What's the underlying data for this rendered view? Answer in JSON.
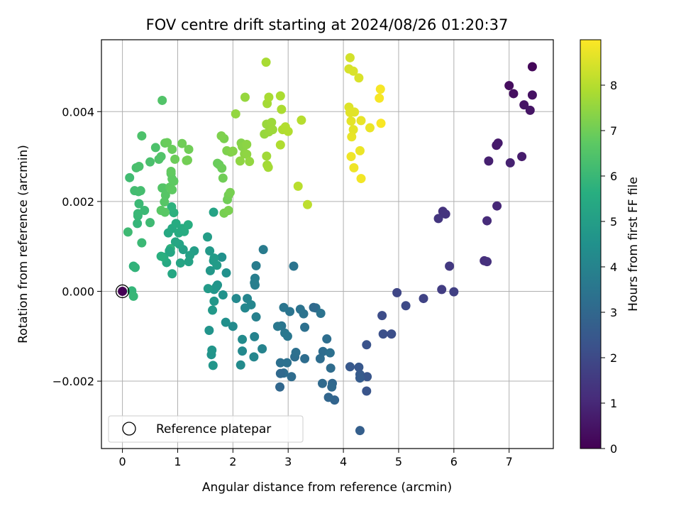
{
  "chart_data": {
    "type": "scatter",
    "title": "FOV centre drift starting at 2024/08/26 01:20:37",
    "xlabel": "Angular distance from reference (arcmin)",
    "ylabel": "Rotation from reference (arcmin)",
    "xlim": [
      -0.38,
      7.8
    ],
    "ylim": [
      -0.0035,
      0.0056
    ],
    "xticks": [
      0,
      1,
      2,
      3,
      4,
      5,
      6,
      7
    ],
    "xtick_labels": [
      "0",
      "1",
      "2",
      "3",
      "4",
      "5",
      "6",
      "7"
    ],
    "yticks": [
      -0.002,
      0.0,
      0.002,
      0.004
    ],
    "ytick_labels": [
      "−0.002",
      "0.000",
      "0.002",
      "0.004"
    ],
    "grid": true,
    "legend": {
      "position": "lower-left",
      "entries": [
        "Reference platepar"
      ]
    },
    "colorbar": {
      "label": "Hours from first FF file",
      "colormap": "viridis",
      "range": [
        0,
        9
      ],
      "ticks": [
        0,
        1,
        2,
        3,
        4,
        5,
        6,
        7,
        8
      ],
      "tick_labels": [
        "0",
        "1",
        "2",
        "3",
        "4",
        "5",
        "6",
        "7",
        "8"
      ]
    },
    "reference_point": {
      "x": 0.0,
      "y": 0.0,
      "marker": "open-circle"
    },
    "points_columns": [
      "x",
      "y",
      "hours"
    ],
    "points": [
      [
        0.0,
        0.0,
        0.0
      ],
      [
        7.42,
        0.005,
        0.15
      ],
      [
        7.0,
        0.00458,
        0.3
      ],
      [
        7.08,
        0.0044,
        0.35
      ],
      [
        7.42,
        0.00437,
        0.4
      ],
      [
        7.27,
        0.00415,
        0.45
      ],
      [
        7.38,
        0.00403,
        0.5
      ],
      [
        6.77,
        0.00325,
        0.6
      ],
      [
        6.8,
        0.0033,
        0.65
      ],
      [
        7.23,
        0.003,
        0.7
      ],
      [
        6.63,
        0.0029,
        0.8
      ],
      [
        7.02,
        0.00286,
        0.85
      ],
      [
        6.78,
        0.0019,
        1.0
      ],
      [
        6.6,
        0.00157,
        1.1
      ],
      [
        5.8,
        0.00178,
        1.3
      ],
      [
        5.85,
        0.00172,
        1.35
      ],
      [
        5.72,
        0.00162,
        1.4
      ],
      [
        6.55,
        0.00068,
        1.2
      ],
      [
        6.6,
        0.00066,
        1.25
      ],
      [
        5.92,
        0.00056,
        1.5
      ],
      [
        5.78,
        4e-05,
        1.6
      ],
      [
        6.0,
        -1e-05,
        1.7
      ],
      [
        4.97,
        -3e-05,
        1.9
      ],
      [
        5.13,
        -0.00032,
        2.0
      ],
      [
        5.45,
        -0.00016,
        1.8
      ],
      [
        4.7,
        -0.00054,
        2.1
      ],
      [
        4.72,
        -0.00095,
        2.2
      ],
      [
        4.87,
        -0.00095,
        2.15
      ],
      [
        4.42,
        -0.00119,
        2.3
      ],
      [
        4.12,
        -0.00168,
        2.5
      ],
      [
        4.28,
        -0.00169,
        2.45
      ],
      [
        4.3,
        -0.00185,
        2.55
      ],
      [
        4.43,
        -0.0019,
        2.4
      ],
      [
        4.3,
        -0.00193,
        2.6
      ],
      [
        4.42,
        -0.00222,
        2.35
      ],
      [
        4.3,
        -0.0031,
        2.7
      ],
      [
        3.84,
        -0.00242,
        2.9
      ],
      [
        3.73,
        -0.00236,
        2.95
      ],
      [
        3.8,
        -0.00205,
        3.0
      ],
      [
        3.79,
        -0.00213,
        3.05
      ],
      [
        3.62,
        -0.00205,
        3.1
      ],
      [
        3.77,
        -0.00171,
        3.15
      ],
      [
        3.63,
        -0.00134,
        3.2
      ],
      [
        3.7,
        -0.00106,
        3.25
      ],
      [
        3.76,
        -0.00137,
        3.3
      ],
      [
        3.58,
        -0.0015,
        3.2
      ],
      [
        3.5,
        -0.00037,
        3.35
      ],
      [
        3.59,
        -0.00049,
        3.4
      ],
      [
        3.46,
        -0.00036,
        3.1
      ],
      [
        3.3,
        -0.0008,
        3.3
      ],
      [
        3.28,
        -0.0005,
        3.4
      ],
      [
        3.3,
        -0.0015,
        3.2
      ],
      [
        3.12,
        -0.00146,
        3.25
      ],
      [
        3.14,
        -0.00136,
        3.3
      ],
      [
        3.06,
        -0.0019,
        3.15
      ],
      [
        2.92,
        -0.00182,
        3.2
      ],
      [
        2.86,
        -0.00159,
        3.3
      ],
      [
        2.98,
        -0.00159,
        3.35
      ],
      [
        2.86,
        -0.00183,
        3.05
      ],
      [
        2.85,
        -0.00213,
        3.0
      ],
      [
        2.92,
        -0.00036,
        3.5
      ],
      [
        3.03,
        -0.00045,
        3.45
      ],
      [
        3.22,
        -0.0004,
        3.4
      ],
      [
        2.99,
        -0.001,
        3.55
      ],
      [
        2.94,
        -0.00093,
        3.6
      ],
      [
        2.88,
        -0.00077,
        3.5
      ],
      [
        2.81,
        -0.00078,
        3.6
      ],
      [
        3.1,
        0.00056,
        3.45
      ],
      [
        2.55,
        0.00093,
        3.7
      ],
      [
        2.42,
        0.00057,
        3.75
      ],
      [
        2.4,
        0.00029,
        3.8
      ],
      [
        2.39,
        0.00019,
        3.85
      ],
      [
        2.4,
        0.00014,
        3.8
      ],
      [
        2.42,
        -0.00057,
        3.9
      ],
      [
        2.39,
        -0.00101,
        4.0
      ],
      [
        2.53,
        -0.00128,
        4.0
      ],
      [
        2.26,
        -0.00016,
        4.05
      ],
      [
        2.33,
        -0.0003,
        4.1
      ],
      [
        2.22,
        -0.00037,
        4.15
      ],
      [
        2.06,
        -0.00016,
        4.2
      ],
      [
        2.0,
        -0.00078,
        4.25
      ],
      [
        2.17,
        -0.00107,
        4.3
      ],
      [
        2.17,
        -0.00133,
        4.2
      ],
      [
        2.38,
        -0.00146,
        4.1
      ],
      [
        2.14,
        -0.00164,
        4.3
      ],
      [
        1.87,
        -0.00069,
        4.45
      ],
      [
        1.88,
        0.00041,
        4.5
      ],
      [
        1.8,
        0.00076,
        4.5
      ],
      [
        1.82,
        -8e-05,
        4.55
      ],
      [
        1.72,
        0.00014,
        4.6
      ],
      [
        1.7,
        0.0001,
        4.65
      ],
      [
        1.66,
        4e-05,
        4.7
      ],
      [
        1.66,
        -0.00022,
        4.75
      ],
      [
        1.63,
        -0.00042,
        4.8
      ],
      [
        1.55,
        6e-05,
        4.85
      ],
      [
        1.58,
        0.0009,
        4.8
      ],
      [
        1.59,
        0.00046,
        4.75
      ],
      [
        1.65,
        0.00068,
        4.85
      ],
      [
        1.66,
        0.00074,
        4.9
      ],
      [
        1.71,
        0.00058,
        4.9
      ],
      [
        1.54,
        0.00121,
        4.95
      ],
      [
        1.57,
        -0.00087,
        4.6
      ],
      [
        1.61,
        -0.00141,
        4.6
      ],
      [
        1.62,
        -0.00131,
        4.65
      ],
      [
        1.64,
        -0.00165,
        4.7
      ],
      [
        1.3,
        0.0009,
        5.0
      ],
      [
        1.22,
        0.0008,
        5.1
      ],
      [
        1.2,
        0.00066,
        5.15
      ],
      [
        1.1,
        0.00093,
        5.1
      ],
      [
        1.03,
        0.00105,
        5.2
      ],
      [
        1.05,
        0.00063,
        5.25
      ],
      [
        0.96,
        0.0011,
        5.3
      ],
      [
        0.87,
        0.00087,
        5.3
      ],
      [
        0.9,
        0.00039,
        5.35
      ],
      [
        0.8,
        0.00064,
        5.4
      ],
      [
        0.83,
        0.0013,
        5.4
      ],
      [
        0.9,
        0.0014,
        5.45
      ],
      [
        0.97,
        0.00151,
        5.5
      ],
      [
        1.08,
        0.0014,
        5.5
      ],
      [
        1.12,
        0.00133,
        5.55
      ],
      [
        1.19,
        0.00148,
        5.6
      ],
      [
        0.75,
        0.00076,
        5.6
      ],
      [
        0.7,
        0.00078,
        5.65
      ],
      [
        0.93,
        0.00175,
        5.7
      ],
      [
        0.89,
        0.00188,
        5.75
      ],
      [
        0.87,
        0.00095,
        5.8
      ],
      [
        0.2,
        0.00056,
        5.8
      ],
      [
        0.23,
        0.00053,
        5.85
      ],
      [
        0.17,
        1e-05,
        5.9
      ],
      [
        0.2,
        -0.00011,
        5.95
      ],
      [
        0.27,
        0.00151,
        5.9
      ],
      [
        0.28,
        0.00168,
        5.95
      ],
      [
        0.28,
        0.00173,
        6.0
      ],
      [
        0.3,
        0.00195,
        6.05
      ],
      [
        0.4,
        0.0018,
        6.05
      ],
      [
        0.5,
        0.00153,
        6.1
      ],
      [
        0.35,
        0.00108,
        6.05
      ],
      [
        0.1,
        0.00132,
        6.1
      ],
      [
        0.13,
        0.00253,
        6.15
      ],
      [
        0.22,
        0.00224,
        6.2
      ],
      [
        0.29,
        0.00222,
        6.2
      ],
      [
        0.33,
        0.00224,
        6.25
      ],
      [
        0.25,
        0.00275,
        6.3
      ],
      [
        0.3,
        0.00278,
        6.35
      ],
      [
        0.5,
        0.00288,
        6.35
      ],
      [
        0.35,
        0.00346,
        6.4
      ],
      [
        0.6,
        0.0032,
        6.4
      ],
      [
        0.66,
        0.00294,
        6.45
      ],
      [
        0.7,
        0.003,
        6.5
      ],
      [
        0.72,
        0.0023,
        6.55
      ],
      [
        0.74,
        0.0023,
        6.55
      ],
      [
        0.78,
        0.00214,
        6.6
      ],
      [
        0.76,
        0.00199,
        6.6
      ],
      [
        0.77,
        0.00176,
        6.65
      ],
      [
        0.7,
        0.0018,
        6.65
      ],
      [
        0.86,
        0.00232,
        6.7
      ],
      [
        0.88,
        0.00262,
        6.7
      ],
      [
        0.9,
        0.0025,
        6.75
      ],
      [
        0.93,
        0.00245,
        6.75
      ],
      [
        0.88,
        0.00267,
        6.8
      ],
      [
        0.77,
        0.0033,
        6.85
      ],
      [
        0.81,
        0.00331,
        6.9
      ],
      [
        0.9,
        0.00316,
        6.9
      ],
      [
        0.95,
        0.00294,
        6.95
      ],
      [
        1.08,
        0.00329,
        7.0
      ],
      [
        1.2,
        0.00316,
        7.0
      ],
      [
        1.18,
        0.00292,
        7.05
      ],
      [
        1.16,
        0.00291,
        7.05
      ],
      [
        0.9,
        0.00226,
        6.75
      ],
      [
        1.02,
        0.0013,
        5.5
      ],
      [
        0.72,
        0.00425,
        6.5
      ],
      [
        0.85,
        0.0009,
        5.3
      ],
      [
        1.65,
        0.00176,
        5.2
      ],
      [
        1.72,
        0.00285,
        6.9
      ],
      [
        1.75,
        0.00282,
        6.9
      ],
      [
        1.8,
        0.00274,
        6.95
      ],
      [
        1.82,
        0.00252,
        7.0
      ],
      [
        1.9,
        0.00204,
        7.0
      ],
      [
        1.92,
        0.00214,
        7.05
      ],
      [
        1.95,
        0.0022,
        7.1
      ],
      [
        1.84,
        0.00174,
        7.1
      ],
      [
        1.92,
        0.0018,
        7.15
      ],
      [
        1.84,
        0.0034,
        7.15
      ],
      [
        1.79,
        0.00346,
        7.2
      ],
      [
        1.89,
        0.00313,
        7.2
      ],
      [
        1.96,
        0.0031,
        7.25
      ],
      [
        2.0,
        0.00312,
        7.3
      ],
      [
        2.15,
        0.0033,
        7.3
      ],
      [
        2.17,
        0.00322,
        7.35
      ],
      [
        2.2,
        0.00323,
        7.35
      ],
      [
        2.25,
        0.00327,
        7.4
      ],
      [
        2.21,
        0.00306,
        7.4
      ],
      [
        2.25,
        0.00305,
        7.45
      ],
      [
        2.3,
        0.00289,
        7.5
      ],
      [
        2.13,
        0.0029,
        7.45
      ],
      [
        2.05,
        0.00395,
        7.5
      ],
      [
        2.22,
        0.00432,
        7.55
      ],
      [
        2.57,
        0.0035,
        7.55
      ],
      [
        2.65,
        0.00355,
        7.6
      ],
      [
        2.61,
        0.00372,
        7.6
      ],
      [
        2.7,
        0.00376,
        7.65
      ],
      [
        2.72,
        0.0036,
        7.65
      ],
      [
        2.61,
        0.00301,
        7.7
      ],
      [
        2.62,
        0.00281,
        7.7
      ],
      [
        2.64,
        0.00276,
        7.75
      ],
      [
        2.62,
        0.00418,
        7.75
      ],
      [
        2.65,
        0.00432,
        7.8
      ],
      [
        2.6,
        0.0051,
        7.8
      ],
      [
        2.86,
        0.00435,
        7.85
      ],
      [
        2.88,
        0.00405,
        7.85
      ],
      [
        2.9,
        0.0036,
        7.9
      ],
      [
        2.86,
        0.00326,
        7.9
      ],
      [
        2.95,
        0.00366,
        7.95
      ],
      [
        3.0,
        0.00356,
        7.95
      ],
      [
        3.24,
        0.00381,
        8.0
      ],
      [
        3.18,
        0.00234,
        8.05
      ],
      [
        3.35,
        0.00193,
        8.1
      ],
      [
        4.12,
        0.0052,
        8.4
      ],
      [
        4.1,
        0.00495,
        8.45
      ],
      [
        4.18,
        0.0049,
        8.5
      ],
      [
        4.28,
        0.00475,
        8.5
      ],
      [
        4.1,
        0.0041,
        8.55
      ],
      [
        4.12,
        0.00398,
        8.6
      ],
      [
        4.2,
        0.00399,
        8.6
      ],
      [
        4.14,
        0.00379,
        8.65
      ],
      [
        4.18,
        0.0036,
        8.65
      ],
      [
        4.15,
        0.00344,
        8.7
      ],
      [
        4.32,
        0.0038,
        8.7
      ],
      [
        4.48,
        0.00364,
        8.75
      ],
      [
        4.3,
        0.00313,
        8.75
      ],
      [
        4.14,
        0.003,
        8.8
      ],
      [
        4.19,
        0.00275,
        8.8
      ],
      [
        4.32,
        0.00251,
        8.85
      ],
      [
        4.67,
        0.0045,
        8.9
      ],
      [
        4.65,
        0.0043,
        8.9
      ],
      [
        4.68,
        0.00374,
        8.95
      ]
    ]
  }
}
